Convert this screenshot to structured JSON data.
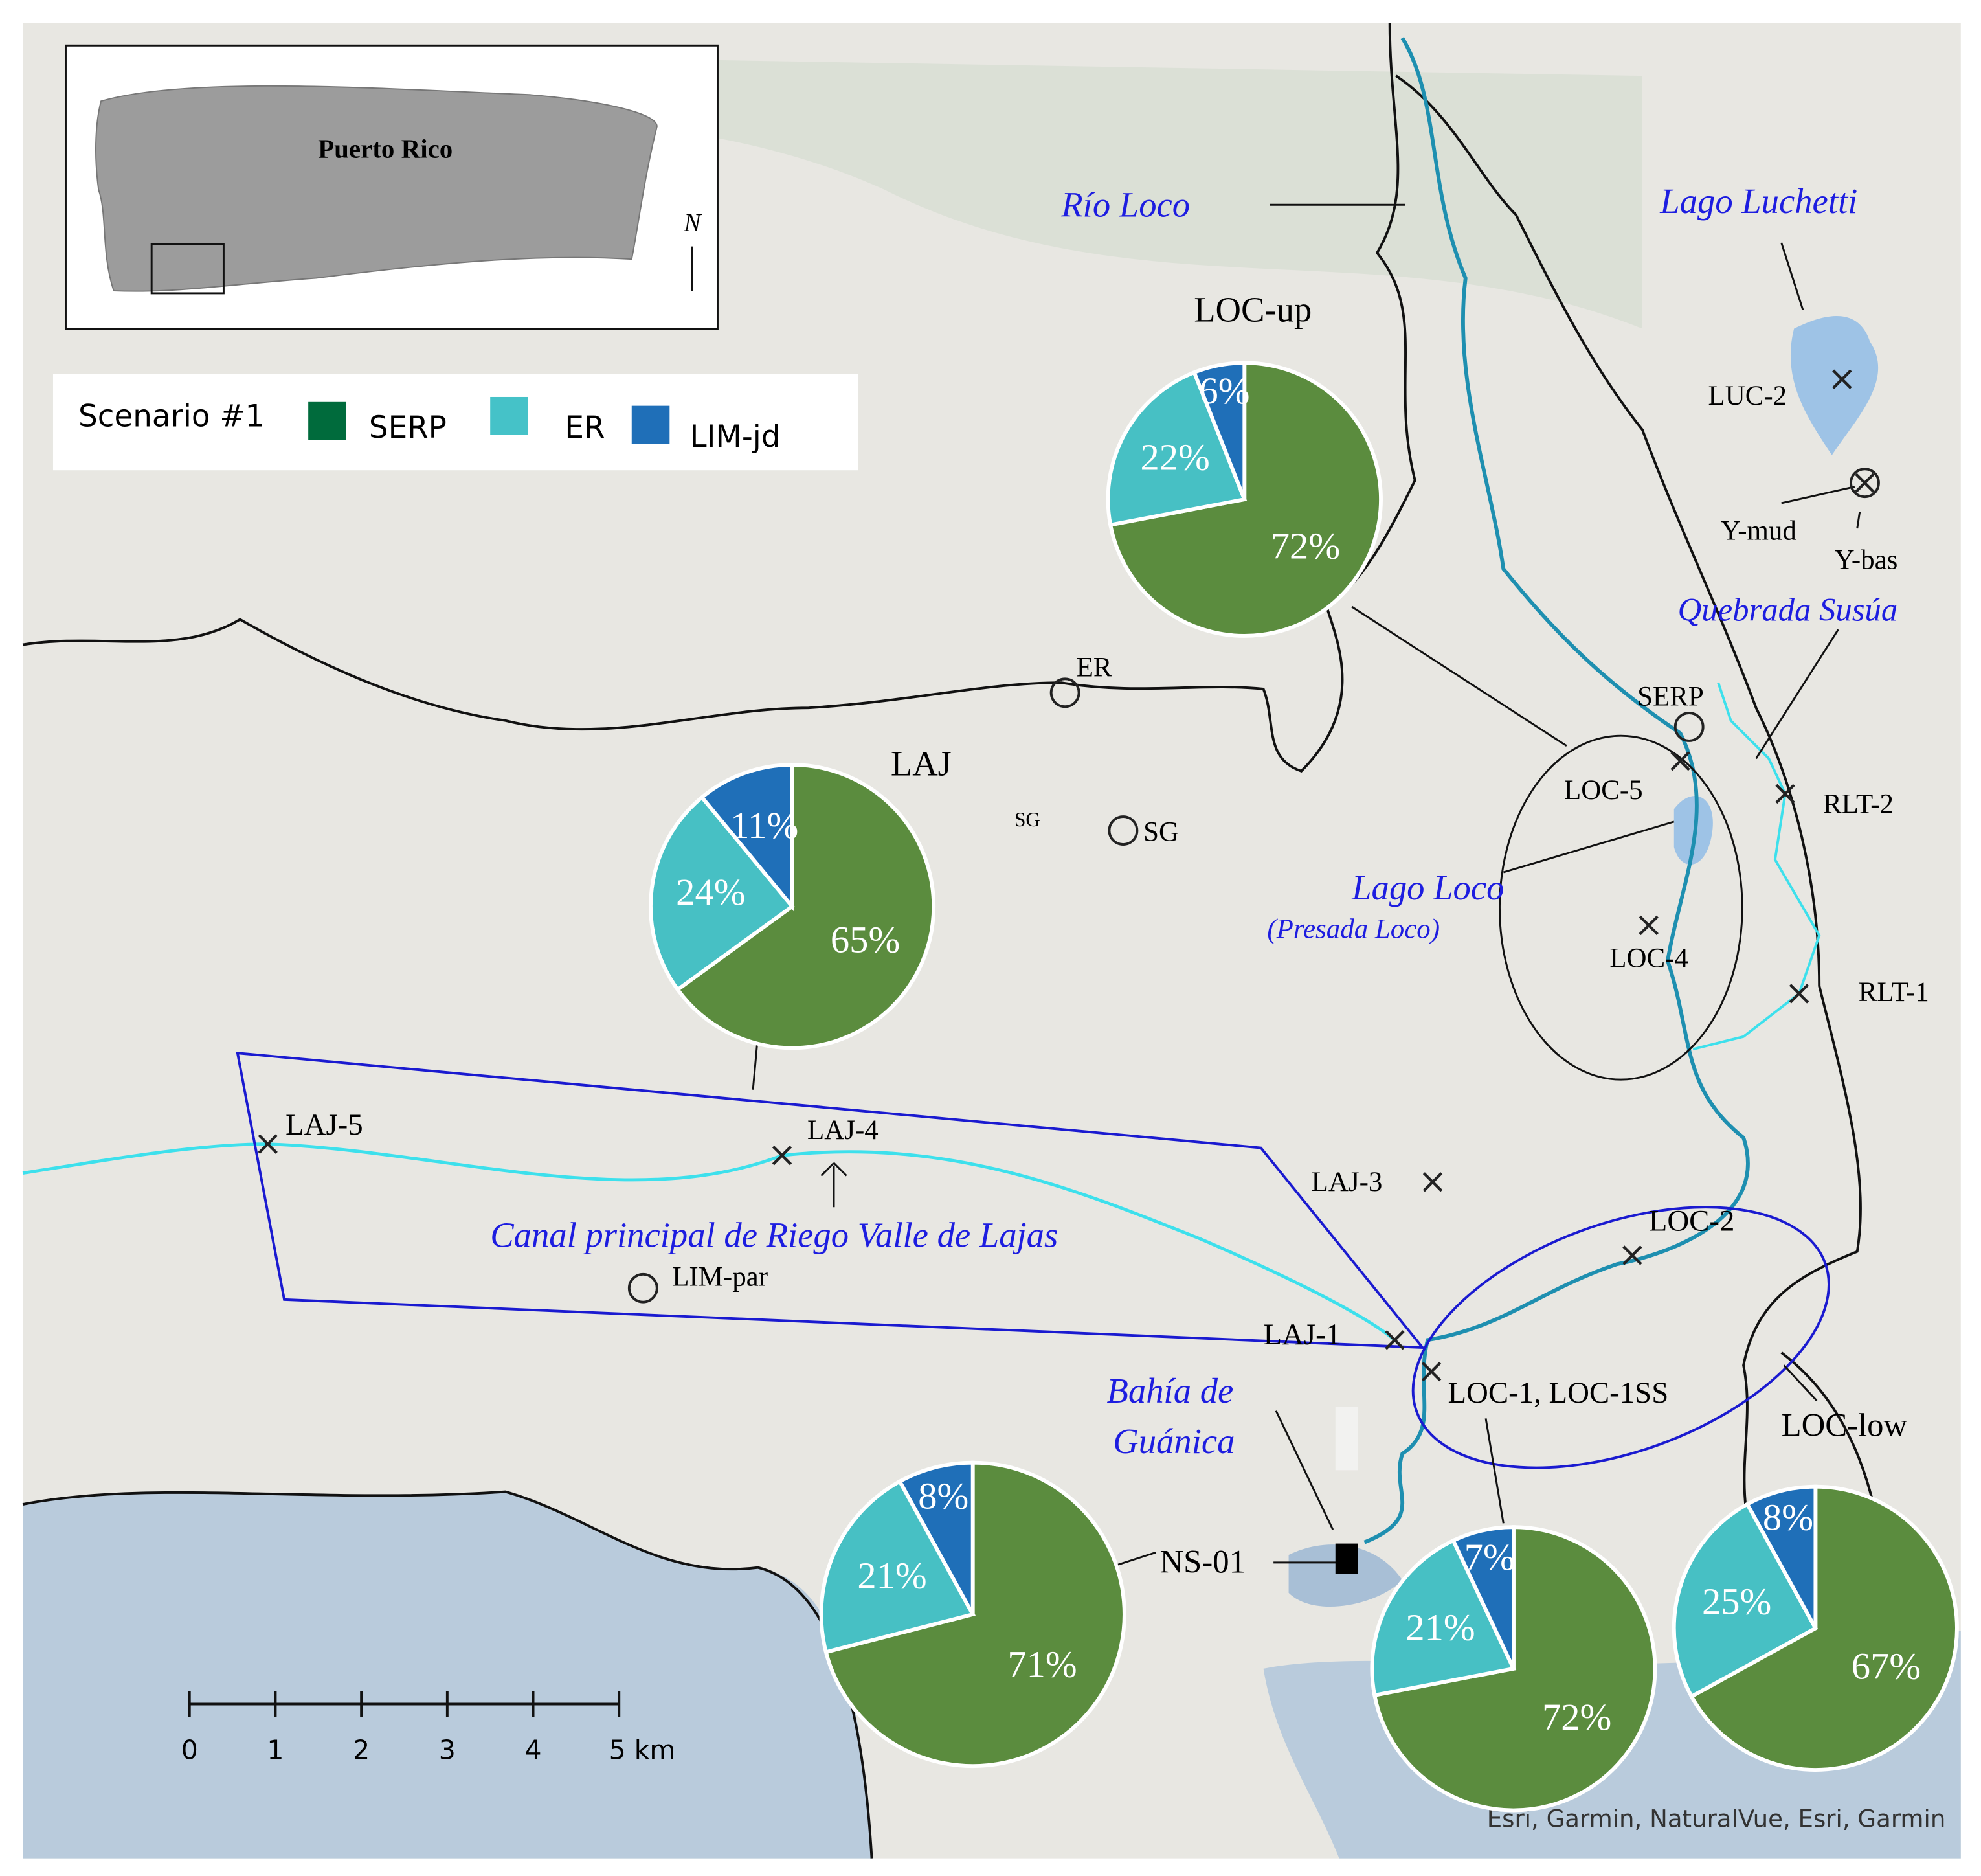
{
  "inset": {
    "title": "Puerto Rico",
    "north": "N"
  },
  "legend": {
    "title": "Scenario #1",
    "colors": [
      "#006b3c",
      "#45c2c8",
      "#1f6fb8"
    ]
  },
  "chart_data": [
    {
      "type": "pie",
      "title": "LOC-up",
      "categories": [
        "SERP",
        "ER",
        "LIM-jd"
      ],
      "colors": [
        "#5b8c3e",
        "#47c0c4",
        "#1f6fb8"
      ],
      "values": [
        72,
        22,
        6
      ],
      "value_labels": [
        "72%",
        "22%",
        "6%"
      ]
    },
    {
      "type": "pie",
      "title": "LAJ",
      "categories": [
        "SERP",
        "ER",
        "LIM-jd"
      ],
      "colors": [
        "#5b8c3e",
        "#47c0c4",
        "#1f6fb8"
      ],
      "values": [
        65,
        24,
        11
      ],
      "value_labels": [
        "65%",
        "24%",
        "11%"
      ]
    },
    {
      "type": "pie",
      "categories": [
        "SERP",
        "ER",
        "LIM-jd"
      ],
      "colors": [
        "#5b8c3e",
        "#47c0c4",
        "#1f6fb8"
      ],
      "values": [
        71,
        21,
        8
      ],
      "value_labels": [
        "71%",
        "21%",
        "8%"
      ]
    },
    {
      "type": "pie",
      "categories": [
        "SERP",
        "ER",
        "LIM-jd"
      ],
      "colors": [
        "#5b8c3e",
        "#47c0c4",
        "#1f6fb8"
      ],
      "values": [
        72,
        21,
        7
      ],
      "value_labels": [
        "72%",
        "21%",
        "7%"
      ]
    },
    {
      "type": "pie",
      "categories": [
        "SERP",
        "ER",
        "LIM-jd"
      ],
      "colors": [
        "#5b8c3e",
        "#47c0c4",
        "#1f6fb8"
      ],
      "values": [
        67,
        25,
        8
      ],
      "value_labels": [
        "67%",
        "25%",
        "8%"
      ]
    }
  ],
  "water_labels": [
    "Río Loco",
    "Lago Luchetti",
    "Quebrada Susúa",
    "Lago Loco",
    "(Presada Loco)",
    "Canal principal de Riego Valle de Lajas",
    "Bahía de",
    "Guánica"
  ],
  "sites": [
    {
      "label": "LUC-2",
      "marker": "x"
    },
    {
      "label": "Y-mud",
      "marker": "circle-x"
    },
    {
      "label": "Y-bas"
    },
    {
      "label": "SERP",
      "marker": "circle"
    },
    {
      "label": "ER",
      "marker": "circle"
    },
    {
      "label": "SG"
    },
    {
      "label": "SG",
      "marker": "circle"
    },
    {
      "label": "LOC-5",
      "marker": "x"
    },
    {
      "label": "LOC-4",
      "marker": "x"
    },
    {
      "label": "RLT-2",
      "marker": "x"
    },
    {
      "label": "RLT-1",
      "marker": "x"
    },
    {
      "label": "LAJ-5",
      "marker": "x"
    },
    {
      "label": "LAJ-4",
      "marker": "x"
    },
    {
      "label": "LAJ-3",
      "marker": "x"
    },
    {
      "label": "LAJ-1",
      "marker": "x"
    },
    {
      "label": "LIM-par",
      "marker": "circle"
    },
    {
      "label": "LOC-2",
      "marker": "x"
    },
    {
      "label": "LOC-1, LOC-1SS",
      "marker": "x"
    },
    {
      "label": "LOC-low"
    },
    {
      "label": "NS-01",
      "marker": "square"
    }
  ],
  "scale": {
    "ticks": [
      0,
      1,
      2,
      3,
      4,
      {
        "value": 5,
        "label": "5 km"
      }
    ]
  },
  "credit": "Esri, Garmin, NaturalVue, Esri, Garmin"
}
